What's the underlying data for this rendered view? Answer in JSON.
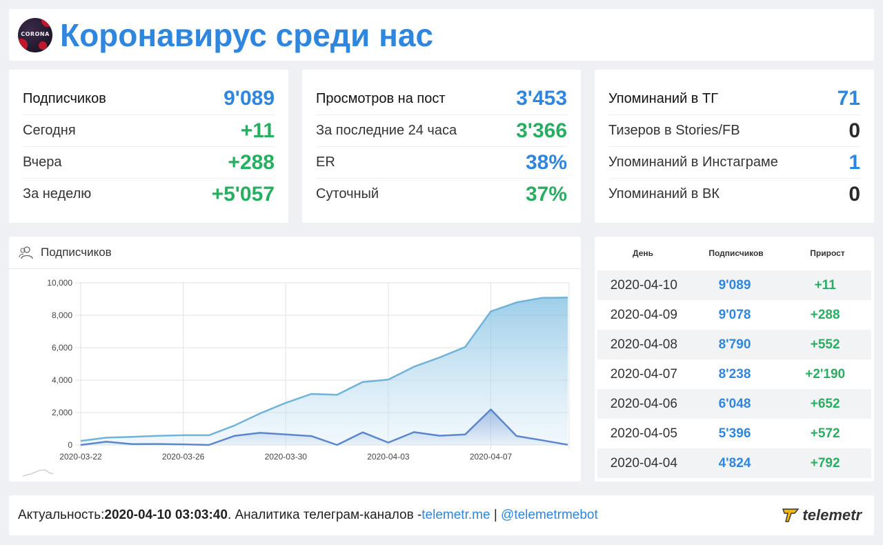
{
  "header": {
    "title": "Коронавирус среди нас",
    "logo_text": "CORONA"
  },
  "stats": [
    {
      "rows": [
        {
          "label": "Подписчиков",
          "value": "9'089",
          "color": "blue"
        },
        {
          "label": "Сегодня",
          "value": "+11",
          "color": "green"
        },
        {
          "label": "Вчера",
          "value": "+288",
          "color": "green"
        },
        {
          "label": "За неделю",
          "value": "+5'057",
          "color": "green"
        }
      ]
    },
    {
      "rows": [
        {
          "label": "Просмотров на пост",
          "value": "3'453",
          "color": "blue"
        },
        {
          "label": "За последние 24 часа",
          "value": "3'366",
          "color": "green"
        },
        {
          "label": "ER",
          "value": "38%",
          "color": "blue"
        },
        {
          "label": "Суточный",
          "value": "37%",
          "color": "green"
        }
      ]
    },
    {
      "rows": [
        {
          "label": "Упоминаний в ТГ",
          "value": "71",
          "color": "blue"
        },
        {
          "label": "Тизеров в Stories/FB",
          "value": "0",
          "color": "dark"
        },
        {
          "label": "Упоминаний в Инстаграме",
          "value": "1",
          "color": "blue"
        },
        {
          "label": "Упоминаний в ВК",
          "value": "0",
          "color": "dark"
        }
      ]
    }
  ],
  "chart_panel": {
    "title": "Подписчиков",
    "icon": "users-icon"
  },
  "chart_data": {
    "type": "area",
    "x": [
      "2020-03-22",
      "2020-03-23",
      "2020-03-24",
      "2020-03-25",
      "2020-03-26",
      "2020-03-27",
      "2020-03-28",
      "2020-03-29",
      "2020-03-30",
      "2020-03-31",
      "2020-04-01",
      "2020-04-02",
      "2020-04-03",
      "2020-04-04",
      "2020-04-05",
      "2020-04-06",
      "2020-04-07",
      "2020-04-08",
      "2020-04-09",
      "2020-04-10"
    ],
    "x_ticks": [
      "2020-03-22",
      "2020-03-26",
      "2020-03-30",
      "2020-04-03",
      "2020-04-07"
    ],
    "y_ticks": [
      "0",
      "2,000",
      "4,000",
      "6,000",
      "8,000",
      "10,000"
    ],
    "ylim": [
      0,
      10000
    ],
    "series": [
      {
        "values": [
          250,
          450,
          500,
          560,
          600,
          600,
          1200,
          1950,
          2600,
          3150,
          3100,
          3880,
          4030,
          4824,
          5396,
          6048,
          8238,
          8790,
          9078,
          9089
        ],
        "color": "#6fb3d9"
      },
      {
        "values": [
          0,
          200,
          50,
          60,
          40,
          0,
          560,
          750,
          650,
          550,
          0,
          780,
          150,
          792,
          572,
          652,
          2190,
          552,
          288,
          11
        ],
        "color": "#5b86cc"
      }
    ],
    "grid": true
  },
  "table": {
    "headers": [
      "День",
      "Подписчиков",
      "Прирост"
    ],
    "rows": [
      [
        "2020-04-10",
        "9'089",
        "+11"
      ],
      [
        "2020-04-09",
        "9'078",
        "+288"
      ],
      [
        "2020-04-08",
        "8'790",
        "+552"
      ],
      [
        "2020-04-07",
        "8'238",
        "+2'190"
      ],
      [
        "2020-04-06",
        "6'048",
        "+652"
      ],
      [
        "2020-04-05",
        "5'396",
        "+572"
      ],
      [
        "2020-04-04",
        "4'824",
        "+792"
      ]
    ]
  },
  "footer": {
    "prefix": "Актуальность: ",
    "timestamp": "2020-04-10 03:03:40",
    "middle": ". Аналитика телеграм-каналов - ",
    "link1": "telemetr.me",
    "sep": " | ",
    "link2": "@telemetrmebot",
    "brand": "telemetr"
  }
}
